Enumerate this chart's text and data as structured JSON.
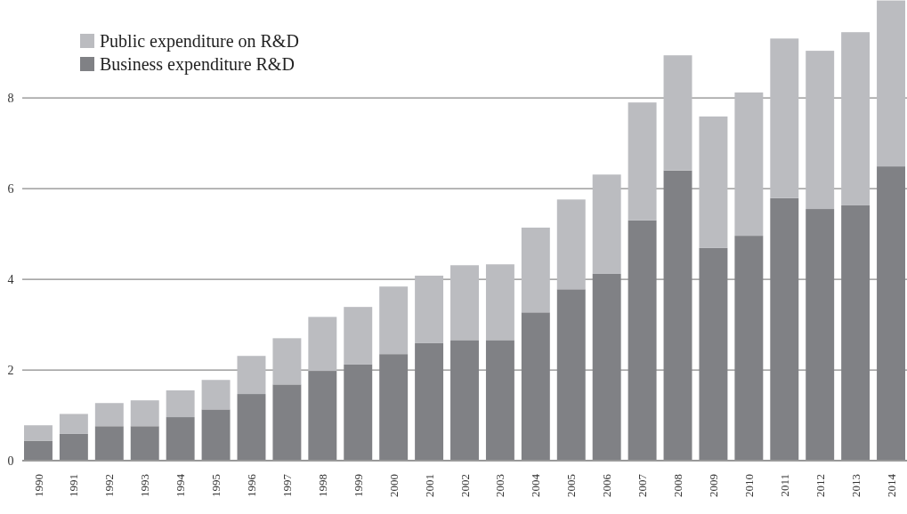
{
  "chart_data": {
    "type": "bar",
    "stacked": true,
    "categories": [
      "1990",
      "1991",
      "1992",
      "1993",
      "1994",
      "1995",
      "1996",
      "1997",
      "1998",
      "1999",
      "2000",
      "2001",
      "2002",
      "2003",
      "2004",
      "2005",
      "2006",
      "2007",
      "2008",
      "2009",
      "2010",
      "2011",
      "2012",
      "2013",
      "2014"
    ],
    "series": [
      {
        "name": "Business expenditure R&D",
        "color": "#808185",
        "values": [
          0.44,
          0.59,
          0.76,
          0.76,
          0.96,
          1.13,
          1.47,
          1.68,
          1.98,
          2.12,
          2.35,
          2.59,
          2.66,
          2.66,
          3.27,
          3.78,
          4.12,
          5.3,
          6.4,
          4.69,
          4.96,
          5.79,
          5.55,
          5.63,
          6.49
        ]
      },
      {
        "name": "Public expenditure on R&D",
        "color": "#bbbcc0",
        "values": [
          0.34,
          0.44,
          0.51,
          0.57,
          0.59,
          0.65,
          0.84,
          1.02,
          1.19,
          1.27,
          1.49,
          1.49,
          1.65,
          1.67,
          1.87,
          1.98,
          2.19,
          2.6,
          2.54,
          2.9,
          3.16,
          3.52,
          3.49,
          3.82,
          3.66
        ]
      }
    ],
    "ylim": [
      0,
      10.16
    ],
    "yticks": [
      0,
      2,
      4,
      6,
      8
    ],
    "grid": true,
    "legend": "top left"
  }
}
